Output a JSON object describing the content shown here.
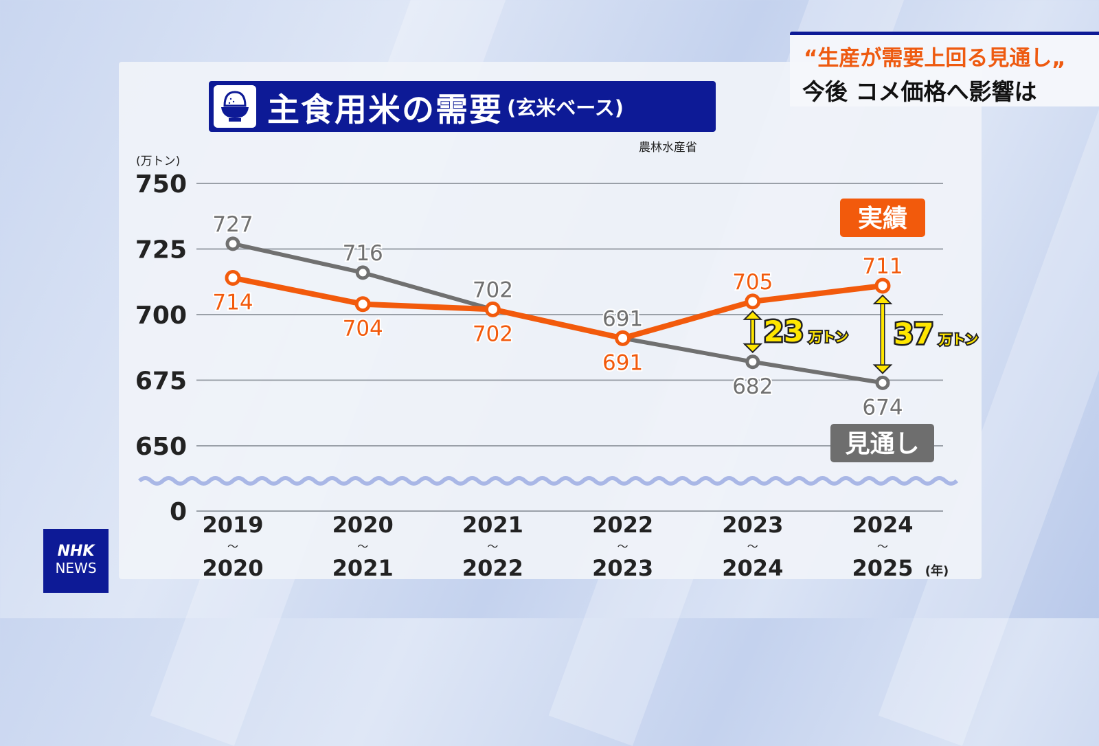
{
  "caption": {
    "line1": "“生産が需要上回る見通し„",
    "line2": "今後 コメ価格へ影響は"
  },
  "logo": {
    "line1": "NHK",
    "line2": "NEWS"
  },
  "chart_data": {
    "type": "line",
    "title": "主食用米の需要",
    "subtitle": "(玄米ベース)",
    "source": "農林水産省",
    "ylabel": "(万トン)",
    "xunit": "(年)",
    "y_ticks": [
      "750",
      "725",
      "700",
      "675",
      "650",
      "0"
    ],
    "y_tick_values": [
      750,
      725,
      700,
      675,
      650
    ],
    "ylim": [
      650,
      750
    ],
    "axis_break": true,
    "categories": [
      [
        "2019",
        "2020"
      ],
      [
        "2020",
        "2021"
      ],
      [
        "2021",
        "2022"
      ],
      [
        "2022",
        "2023"
      ],
      [
        "2023",
        "2024"
      ],
      [
        "2024",
        "2025"
      ]
    ],
    "category_separator": "〜",
    "series": [
      {
        "name": "実績",
        "color": "#f25a0c",
        "values": [
          714,
          704,
          702,
          691,
          705,
          711
        ],
        "label_pos": [
          "below",
          "below",
          "below",
          "below",
          "above",
          "above"
        ]
      },
      {
        "name": "見通し",
        "color": "#707070",
        "values": [
          727,
          716,
          702,
          691,
          682,
          674
        ],
        "label_pos": [
          "above",
          "above",
          "above",
          "above",
          "below",
          "below"
        ]
      }
    ],
    "annotations": [
      {
        "category_index": 4,
        "from": 705,
        "to": 682,
        "value": "23",
        "unit": "万トン"
      },
      {
        "category_index": 5,
        "from": 711,
        "to": 674,
        "value": "37",
        "unit": "万トン"
      }
    ],
    "annotation_color": "#ffe600"
  }
}
